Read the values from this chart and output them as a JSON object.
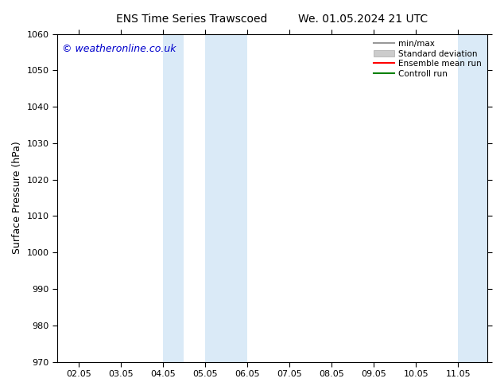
{
  "title_left": "ENS Time Series Trawscoed",
  "title_right": "We. 01.05.2024 21 UTC",
  "ylabel": "Surface Pressure (hPa)",
  "ylim": [
    970,
    1060
  ],
  "yticks": [
    970,
    980,
    990,
    1000,
    1010,
    1020,
    1030,
    1040,
    1050,
    1060
  ],
  "xtick_labels": [
    "02.05",
    "03.05",
    "04.05",
    "05.05",
    "06.05",
    "07.05",
    "08.05",
    "09.05",
    "10.05",
    "11.05"
  ],
  "xtick_positions": [
    0,
    1,
    2,
    3,
    4,
    5,
    6,
    7,
    8,
    9
  ],
  "xlim": [
    -0.5,
    9.7
  ],
  "shaded_bands": [
    {
      "xmin": 2.0,
      "xmax": 2.5
    },
    {
      "xmin": 3.0,
      "xmax": 4.0
    },
    {
      "xmin": 9.0,
      "xmax": 9.7
    }
  ],
  "shade_color": "#daeaf7",
  "watermark": "© weatheronline.co.uk",
  "legend_entries": [
    {
      "label": "min/max",
      "color": "#999999",
      "lw": 1.5,
      "type": "line"
    },
    {
      "label": "Standard deviation",
      "color": "#cccccc",
      "lw": 8,
      "type": "patch"
    },
    {
      "label": "Ensemble mean run",
      "color": "red",
      "lw": 1.5,
      "type": "line"
    },
    {
      "label": "Controll run",
      "color": "green",
      "lw": 1.5,
      "type": "line"
    }
  ],
  "background_color": "#ffffff",
  "plot_bg_color": "#ffffff",
  "title_fontsize": 10,
  "tick_fontsize": 8,
  "ylabel_fontsize": 9,
  "watermark_color": "#0000cc",
  "watermark_fontsize": 9
}
